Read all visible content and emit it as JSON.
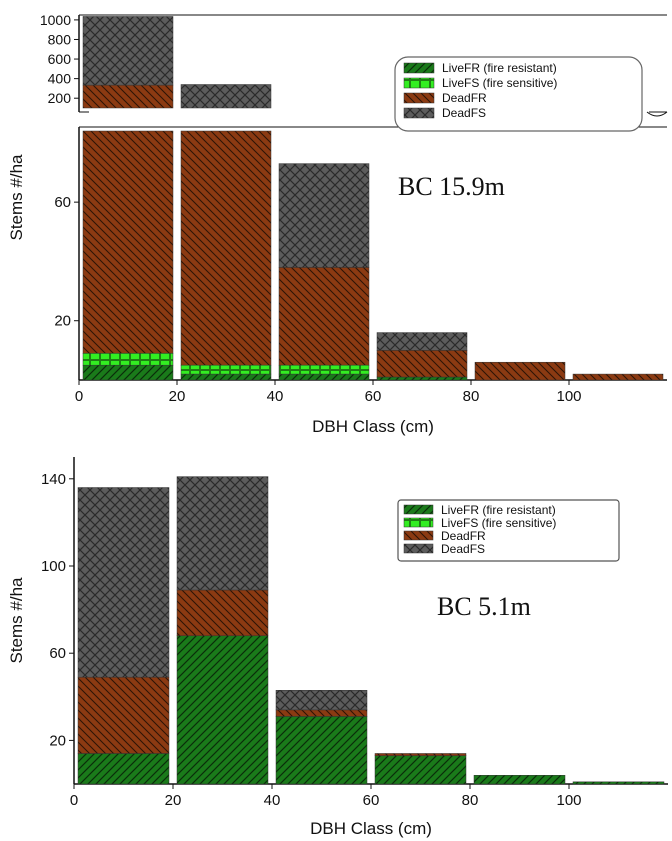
{
  "chart_data": [
    {
      "type": "bar",
      "stacked": true,
      "broken_y_axis": true,
      "xlabel": "DBH Class (cm)",
      "ylabel": "Stems #/ha",
      "annotation": "BC 15.9m",
      "bin_starts": [
        0,
        20,
        40,
        60,
        80,
        100
      ],
      "bin_width": 20,
      "x_ticks": [
        "0",
        "20",
        "40",
        "60",
        "80",
        "100"
      ],
      "y_ticks_lower": [
        "20",
        "60"
      ],
      "y_ticks_upper": [
        "200",
        "400",
        "600",
        "800",
        "1000"
      ],
      "ylim_lower": [
        0,
        84
      ],
      "ylim_upper": [
        100,
        1050
      ],
      "series": [
        {
          "name": "LiveFR (fire resistant)",
          "values": [
            5,
            2,
            2,
            1,
            0,
            0
          ]
        },
        {
          "name": "LiveFS (fire sensitive)",
          "values": [
            4,
            3,
            3,
            0,
            0,
            0
          ]
        },
        {
          "name": "DeadFR",
          "values": [
            325,
            95,
            33,
            9,
            6,
            2
          ]
        },
        {
          "name": "DeadFS",
          "values": [
            701,
            240,
            35,
            6,
            0,
            0
          ]
        }
      ],
      "totals": [
        1035,
        340,
        73,
        16,
        6,
        2
      ],
      "legend_position": "top-right"
    },
    {
      "type": "bar",
      "stacked": true,
      "xlabel": "DBH Class (cm)",
      "ylabel": "Stems #/ha",
      "annotation": "BC 5.1m",
      "bin_starts": [
        0,
        20,
        40,
        60,
        80,
        100
      ],
      "bin_width": 20,
      "x_ticks": [
        "0",
        "20",
        "40",
        "60",
        "80",
        "100"
      ],
      "y_ticks": [
        "20",
        "60",
        "100",
        "140"
      ],
      "ylim": [
        0,
        150
      ],
      "series": [
        {
          "name": "LiveFR (fire resistant)",
          "values": [
            14,
            68,
            31,
            13,
            4,
            1
          ]
        },
        {
          "name": "LiveFS (fire sensitive)",
          "values": [
            0,
            0,
            0,
            0,
            0,
            0
          ]
        },
        {
          "name": "DeadFR",
          "values": [
            35,
            21,
            3,
            1,
            0,
            0
          ]
        },
        {
          "name": "DeadFS",
          "values": [
            87,
            52,
            9,
            0,
            0,
            0
          ]
        }
      ],
      "legend_position": "top-right"
    }
  ],
  "colors": {
    "liveFR": "#1a7a1a",
    "liveFS": "#33ee22",
    "deadFR": "#8b3a12",
    "deadFS": "#5c5c5c"
  }
}
